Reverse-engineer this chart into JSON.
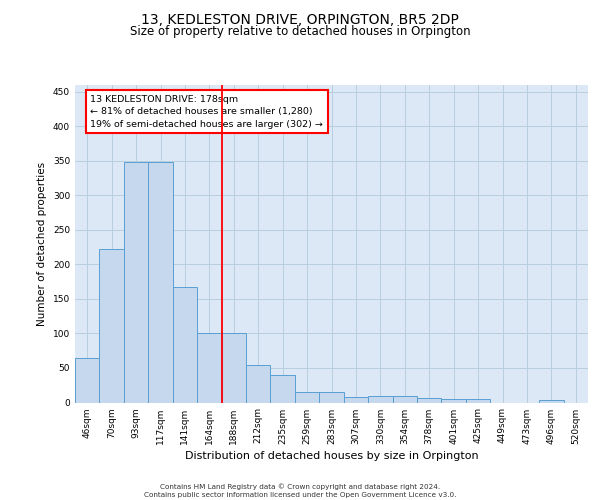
{
  "title": "13, KEDLESTON DRIVE, ORPINGTON, BR5 2DP",
  "subtitle": "Size of property relative to detached houses in Orpington",
  "xlabel": "Distribution of detached houses by size in Orpington",
  "ylabel": "Number of detached properties",
  "categories": [
    "46sqm",
    "70sqm",
    "93sqm",
    "117sqm",
    "141sqm",
    "164sqm",
    "188sqm",
    "212sqm",
    "235sqm",
    "259sqm",
    "283sqm",
    "307sqm",
    "330sqm",
    "354sqm",
    "378sqm",
    "401sqm",
    "425sqm",
    "449sqm",
    "473sqm",
    "496sqm",
    "520sqm"
  ],
  "values": [
    65,
    222,
    348,
    348,
    168,
    100,
    100,
    55,
    40,
    15,
    15,
    8,
    10,
    10,
    6,
    5,
    5,
    0,
    0,
    3,
    0
  ],
  "bar_color": "#c5d8ed",
  "bar_edge_color": "#5a9fd4",
  "bar_linewidth": 0.7,
  "annotation_text_line1": "13 KEDLESTON DRIVE: 178sqm",
  "annotation_text_line2": "← 81% of detached houses are smaller (1,280)",
  "annotation_text_line3": "19% of semi-detached houses are larger (302) →",
  "annotation_box_color": "white",
  "annotation_box_edgecolor": "red",
  "vline_color": "red",
  "ylim": [
    0,
    460
  ],
  "yticks": [
    0,
    50,
    100,
    150,
    200,
    250,
    300,
    350,
    400,
    450
  ],
  "grid_color": "#b8cfe0",
  "bg_color": "#dce8f5",
  "title_fontsize": 10,
  "subtitle_fontsize": 8.5,
  "ylabel_fontsize": 7.5,
  "xlabel_fontsize": 8,
  "tick_fontsize": 6.5,
  "footer_line1": "Contains HM Land Registry data © Crown copyright and database right 2024.",
  "footer_line2": "Contains public sector information licensed under the Open Government Licence v3.0."
}
